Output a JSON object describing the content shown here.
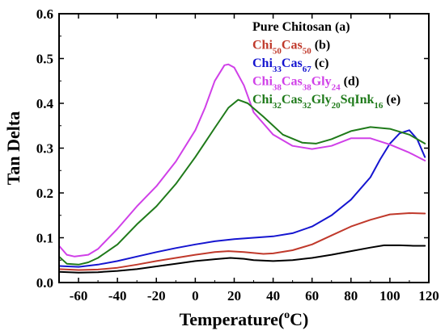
{
  "chart_data": {
    "type": "line",
    "xlabel": "Temperature(",
    "xlabel_sup": "o",
    "xlabel_unit": "C)",
    "ylabel": "Tan Delta",
    "xlim": [
      -70,
      120
    ],
    "ylim": [
      0.0,
      0.6
    ],
    "xticks": [
      -60,
      -40,
      -20,
      0,
      20,
      40,
      60,
      80,
      100,
      120
    ],
    "yticks": [
      0.0,
      0.1,
      0.2,
      0.3,
      0.4,
      0.5,
      0.6
    ],
    "xtick_labels": [
      "-60",
      "-40",
      "-20",
      "0",
      "20",
      "40",
      "60",
      "80",
      "100",
      "120"
    ],
    "ytick_labels": [
      "0.0",
      "0.1",
      "0.2",
      "0.3",
      "0.4",
      "0.5",
      "0.6"
    ],
    "legend_placement": "top-right",
    "series": [
      {
        "name": "Pure Chitosan (a)",
        "legend_parts": [
          {
            "t": "Pure Chitosan (a)"
          }
        ],
        "color": "#000000",
        "points": [
          [
            -70,
            0.024
          ],
          [
            -60,
            0.022
          ],
          [
            -50,
            0.023
          ],
          [
            -40,
            0.026
          ],
          [
            -30,
            0.03
          ],
          [
            -20,
            0.036
          ],
          [
            -10,
            0.042
          ],
          [
            0,
            0.048
          ],
          [
            10,
            0.052
          ],
          [
            18,
            0.055
          ],
          [
            25,
            0.053
          ],
          [
            30,
            0.05
          ],
          [
            40,
            0.048
          ],
          [
            50,
            0.05
          ],
          [
            60,
            0.055
          ],
          [
            70,
            0.062
          ],
          [
            80,
            0.07
          ],
          [
            90,
            0.078
          ],
          [
            97,
            0.083
          ],
          [
            105,
            0.083
          ],
          [
            112,
            0.082
          ],
          [
            118,
            0.082
          ]
        ]
      },
      {
        "name": "Chi50Cas50 (b)",
        "legend_parts": [
          {
            "t": "Chi"
          },
          {
            "t": "50",
            "sub": true
          },
          {
            "t": "Cas"
          },
          {
            "t": "50",
            "sub": true
          },
          {
            "t": " (b)",
            "black": true
          }
        ],
        "color": "#c0392b",
        "points": [
          [
            -70,
            0.03
          ],
          [
            -60,
            0.028
          ],
          [
            -50,
            0.029
          ],
          [
            -40,
            0.033
          ],
          [
            -30,
            0.04
          ],
          [
            -20,
            0.048
          ],
          [
            -10,
            0.055
          ],
          [
            0,
            0.062
          ],
          [
            10,
            0.068
          ],
          [
            17,
            0.07
          ],
          [
            25,
            0.068
          ],
          [
            35,
            0.064
          ],
          [
            40,
            0.065
          ],
          [
            50,
            0.072
          ],
          [
            60,
            0.085
          ],
          [
            70,
            0.105
          ],
          [
            80,
            0.125
          ],
          [
            90,
            0.14
          ],
          [
            100,
            0.152
          ],
          [
            110,
            0.155
          ],
          [
            118,
            0.154
          ]
        ]
      },
      {
        "name": "Chi33Cas67 (c)",
        "legend_parts": [
          {
            "t": "Chi"
          },
          {
            "t": "33",
            "sub": true
          },
          {
            "t": "Cas"
          },
          {
            "t": "67",
            "sub": true
          },
          {
            "t": " (c)",
            "black": true
          }
        ],
        "color": "#1515d0",
        "points": [
          [
            -70,
            0.037
          ],
          [
            -60,
            0.035
          ],
          [
            -50,
            0.04
          ],
          [
            -40,
            0.048
          ],
          [
            -30,
            0.058
          ],
          [
            -20,
            0.068
          ],
          [
            -10,
            0.077
          ],
          [
            0,
            0.085
          ],
          [
            10,
            0.092
          ],
          [
            20,
            0.097
          ],
          [
            30,
            0.1
          ],
          [
            40,
            0.103
          ],
          [
            50,
            0.11
          ],
          [
            60,
            0.125
          ],
          [
            70,
            0.15
          ],
          [
            80,
            0.185
          ],
          [
            90,
            0.235
          ],
          [
            95,
            0.275
          ],
          [
            100,
            0.31
          ],
          [
            105,
            0.333
          ],
          [
            110,
            0.34
          ],
          [
            114,
            0.32
          ],
          [
            118,
            0.28
          ]
        ]
      },
      {
        "name": "Chi38Cas38Gly24 (d)",
        "legend_parts": [
          {
            "t": "Chi"
          },
          {
            "t": "38",
            "sub": true
          },
          {
            "t": "Cas"
          },
          {
            "t": "38",
            "sub": true
          },
          {
            "t": "Gly"
          },
          {
            "t": "24",
            "sub": true
          },
          {
            "t": " (d)",
            "black": true
          }
        ],
        "color": "#d040e8",
        "points": [
          [
            -70,
            0.082
          ],
          [
            -66,
            0.062
          ],
          [
            -62,
            0.058
          ],
          [
            -55,
            0.062
          ],
          [
            -50,
            0.075
          ],
          [
            -40,
            0.12
          ],
          [
            -30,
            0.17
          ],
          [
            -20,
            0.215
          ],
          [
            -10,
            0.27
          ],
          [
            0,
            0.34
          ],
          [
            5,
            0.39
          ],
          [
            10,
            0.45
          ],
          [
            15,
            0.485
          ],
          [
            17,
            0.487
          ],
          [
            20,
            0.48
          ],
          [
            25,
            0.44
          ],
          [
            30,
            0.38
          ],
          [
            40,
            0.33
          ],
          [
            50,
            0.305
          ],
          [
            60,
            0.298
          ],
          [
            70,
            0.305
          ],
          [
            80,
            0.322
          ],
          [
            90,
            0.322
          ],
          [
            100,
            0.308
          ],
          [
            110,
            0.29
          ],
          [
            118,
            0.272
          ]
        ]
      },
      {
        "name": "Chi32Cas32Gly20SqInk16 (e)",
        "legend_parts": [
          {
            "t": "Chi"
          },
          {
            "t": "32",
            "sub": true
          },
          {
            "t": "Cas"
          },
          {
            "t": "32",
            "sub": true
          },
          {
            "t": "Gly"
          },
          {
            "t": "20",
            "sub": true
          },
          {
            "t": "SqInk"
          },
          {
            "t": "16",
            "sub": true
          },
          {
            "t": " (e)",
            "black": true
          }
        ],
        "color": "#1f7a1a",
        "points": [
          [
            -70,
            0.058
          ],
          [
            -66,
            0.042
          ],
          [
            -60,
            0.04
          ],
          [
            -55,
            0.045
          ],
          [
            -50,
            0.055
          ],
          [
            -40,
            0.085
          ],
          [
            -30,
            0.13
          ],
          [
            -20,
            0.17
          ],
          [
            -10,
            0.22
          ],
          [
            0,
            0.28
          ],
          [
            10,
            0.345
          ],
          [
            17,
            0.39
          ],
          [
            22,
            0.408
          ],
          [
            27,
            0.4
          ],
          [
            35,
            0.37
          ],
          [
            45,
            0.33
          ],
          [
            55,
            0.312
          ],
          [
            62,
            0.31
          ],
          [
            70,
            0.32
          ],
          [
            80,
            0.338
          ],
          [
            90,
            0.347
          ],
          [
            100,
            0.343
          ],
          [
            110,
            0.33
          ],
          [
            118,
            0.31
          ]
        ]
      }
    ]
  }
}
